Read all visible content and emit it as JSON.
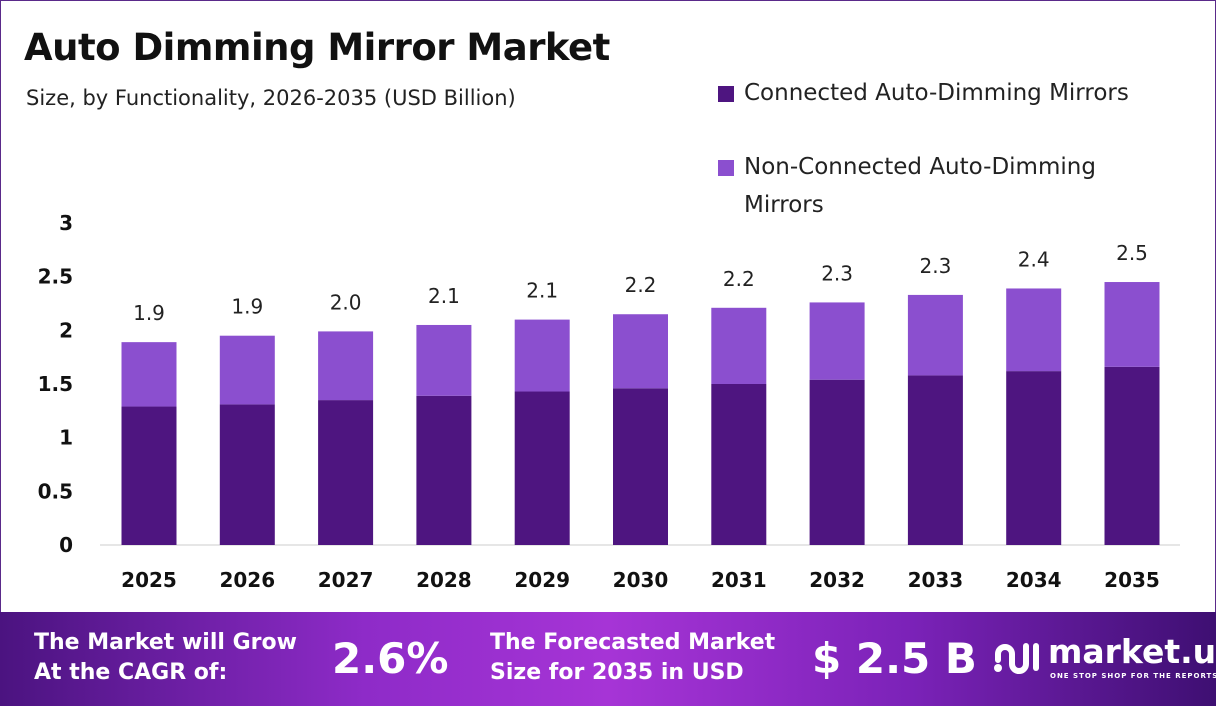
{
  "chart_data": {
    "type": "bar",
    "stacked": true,
    "title": "Auto Dimming Mirror Market",
    "subtitle": "Size, by Functionality, 2026-2035 (USD Billion)",
    "categories": [
      "2025",
      "2026",
      "2027",
      "2028",
      "2029",
      "2030",
      "2031",
      "2032",
      "2033",
      "2034",
      "2035"
    ],
    "series": [
      {
        "name": "Connected Auto-Dimming Mirrors",
        "color": "#4e1580",
        "values": [
          1.29,
          1.31,
          1.35,
          1.39,
          1.43,
          1.46,
          1.5,
          1.54,
          1.58,
          1.62,
          1.66
        ]
      },
      {
        "name": "Non-Connected Auto-Dimming Mirrors",
        "color": "#8b4fcf",
        "values": [
          0.6,
          0.64,
          0.64,
          0.66,
          0.67,
          0.69,
          0.71,
          0.72,
          0.75,
          0.77,
          0.79
        ]
      }
    ],
    "totals_labels": [
      "1.9",
      "1.9",
      "2.0",
      "2.1",
      "2.1",
      "2.2",
      "2.2",
      "2.3",
      "2.3",
      "2.4",
      "2.5"
    ],
    "yticks": [
      "0",
      "0.5",
      "1",
      "1.5",
      "2",
      "2.5",
      "3"
    ],
    "ylim": [
      0,
      3
    ],
    "xlabel": "",
    "ylabel": "",
    "grid": false,
    "legend_position": "top-right"
  },
  "footer": {
    "cagr_label_line1": "The Market will Grow",
    "cagr_label_line2": "At the CAGR of:",
    "cagr_value": "2.6%",
    "forecast_label_line1": "The Forecasted Market",
    "forecast_label_line2": "Size for 2035 in USD",
    "forecast_value": "$ 2.5 B",
    "logo_text": "market.us",
    "logo_tagline": "ONE STOP SHOP FOR THE REPORTS"
  }
}
